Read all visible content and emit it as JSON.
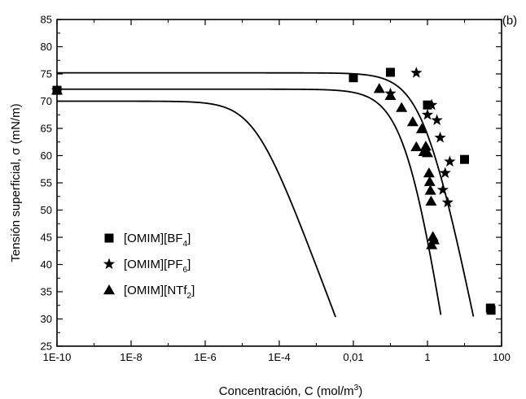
{
  "chart_data": {
    "type": "scatter",
    "panel_label": "(b)",
    "xlabel": "Concentración, C (mol/m",
    "xlabel_sup": "3",
    "xlabel_end": ")",
    "ylabel": "Tensión superficial, σ (mN/m)",
    "x_scale": "log",
    "xlim": [
      1e-10,
      100
    ],
    "ylim": [
      25,
      85
    ],
    "x_ticks": [
      {
        "value": 1e-10,
        "label": "1E-10"
      },
      {
        "value": 1e-08,
        "label": "1E-8"
      },
      {
        "value": 1e-06,
        "label": "1E-6"
      },
      {
        "value": 0.0001,
        "label": "1E-4"
      },
      {
        "value": 0.01,
        "label": "0,01"
      },
      {
        "value": 1,
        "label": "1"
      },
      {
        "value": 100,
        "label": "100"
      }
    ],
    "y_ticks": [
      25,
      30,
      35,
      40,
      45,
      50,
      55,
      60,
      65,
      70,
      75,
      80,
      85
    ],
    "grid": false,
    "legend_position": "lower-left",
    "series": [
      {
        "name": "[OMIM][BF",
        "name_sub": "4",
        "name_end": "]",
        "marker": "square",
        "points": [
          [
            1e-10,
            72.0
          ],
          [
            0.01,
            74.3
          ],
          [
            0.1,
            75.3
          ],
          [
            1.0,
            69.3
          ],
          [
            10.0,
            59.3
          ],
          [
            50.0,
            32.0
          ],
          [
            52.0,
            31.6
          ]
        ],
        "fit": {
          "s0": 75.2,
          "b": 14.6,
          "K": 0.85
        }
      },
      {
        "name": "[OMIM][PF",
        "name_sub": "6",
        "name_end": "]",
        "marker": "star",
        "points": [
          [
            1e-10,
            72.0
          ],
          [
            0.1,
            71.4
          ],
          [
            0.5,
            75.2
          ],
          [
            1.0,
            67.5
          ],
          [
            1.3,
            69.3
          ],
          [
            1.8,
            66.5
          ],
          [
            2.2,
            63.3
          ],
          [
            2.6,
            53.7
          ],
          [
            3.0,
            56.8
          ],
          [
            3.5,
            51.4
          ],
          [
            4.0,
            58.9
          ]
        ],
        "fit": {
          "s0": 72.2,
          "b": 20.0,
          "K": 0.33
        }
      },
      {
        "name": "[OMIM][NTf",
        "name_sub": "2",
        "name_end": "]",
        "marker": "triangle",
        "points": [
          [
            1e-10,
            72.0
          ],
          [
            0.05,
            72.3
          ],
          [
            0.1,
            71.0
          ],
          [
            0.2,
            68.8
          ],
          [
            0.4,
            66.2
          ],
          [
            0.5,
            61.6
          ],
          [
            0.7,
            64.9
          ],
          [
            0.8,
            60.7
          ],
          [
            0.9,
            61.7
          ],
          [
            1.0,
            60.5
          ],
          [
            1.1,
            56.8
          ],
          [
            1.15,
            55.2
          ],
          [
            1.2,
            53.6
          ],
          [
            1.25,
            51.6
          ],
          [
            1.3,
            43.6
          ],
          [
            1.4,
            45.1
          ],
          [
            1.5,
            44.5
          ]
        ],
        "fit": {
          "s0": 70.0,
          "b": 7.9,
          "K": 2.2e-05
        }
      }
    ]
  }
}
